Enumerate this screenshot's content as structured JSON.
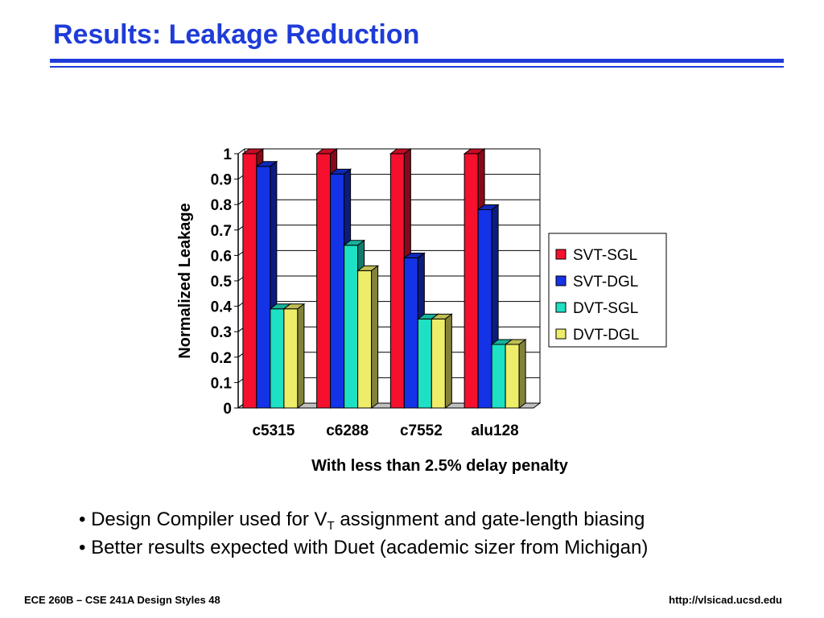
{
  "slide": {
    "title": "Results: Leakage Reduction",
    "bullets": [
      {
        "before": "• Design Compiler used for V",
        "sub": "T",
        "after": " assignment and gate-length biasing"
      },
      {
        "text": "• Better results expected with Duet (academic sizer from Michigan)"
      }
    ],
    "footer_left": "ECE 260B – CSE 241A Design Styles 48",
    "footer_right": "http://vlsicad.ucsd.edu",
    "accent_color": "#1f3cd8"
  },
  "chart_data": {
    "type": "bar",
    "style": "3d-clustered",
    "categories": [
      "c5315",
      "c6288",
      "c7552",
      "alu128"
    ],
    "series": [
      {
        "name": "SVT-SGL",
        "color": "#f5102e",
        "values": [
          1.0,
          1.0,
          1.0,
          1.0
        ]
      },
      {
        "name": "SVT-DGL",
        "color": "#1432e6",
        "values": [
          0.95,
          0.92,
          0.59,
          0.78
        ]
      },
      {
        "name": "DVT-SGL",
        "color": "#1de0c4",
        "values": [
          0.39,
          0.64,
          0.35,
          0.25
        ]
      },
      {
        "name": "DVT-DGL",
        "color": "#eded6a",
        "values": [
          0.39,
          0.54,
          0.35,
          0.25
        ]
      }
    ],
    "xlabel": "With less than 2.5% delay penalty",
    "ylabel": "Normalized Leakage",
    "ylim": [
      0,
      1
    ],
    "yticks": [
      "0",
      "0.1",
      "0.2",
      "0.3",
      "0.4",
      "0.5",
      "0.6",
      "0.7",
      "0.8",
      "0.9",
      "1"
    ],
    "grid": true,
    "legend_position": "right"
  }
}
